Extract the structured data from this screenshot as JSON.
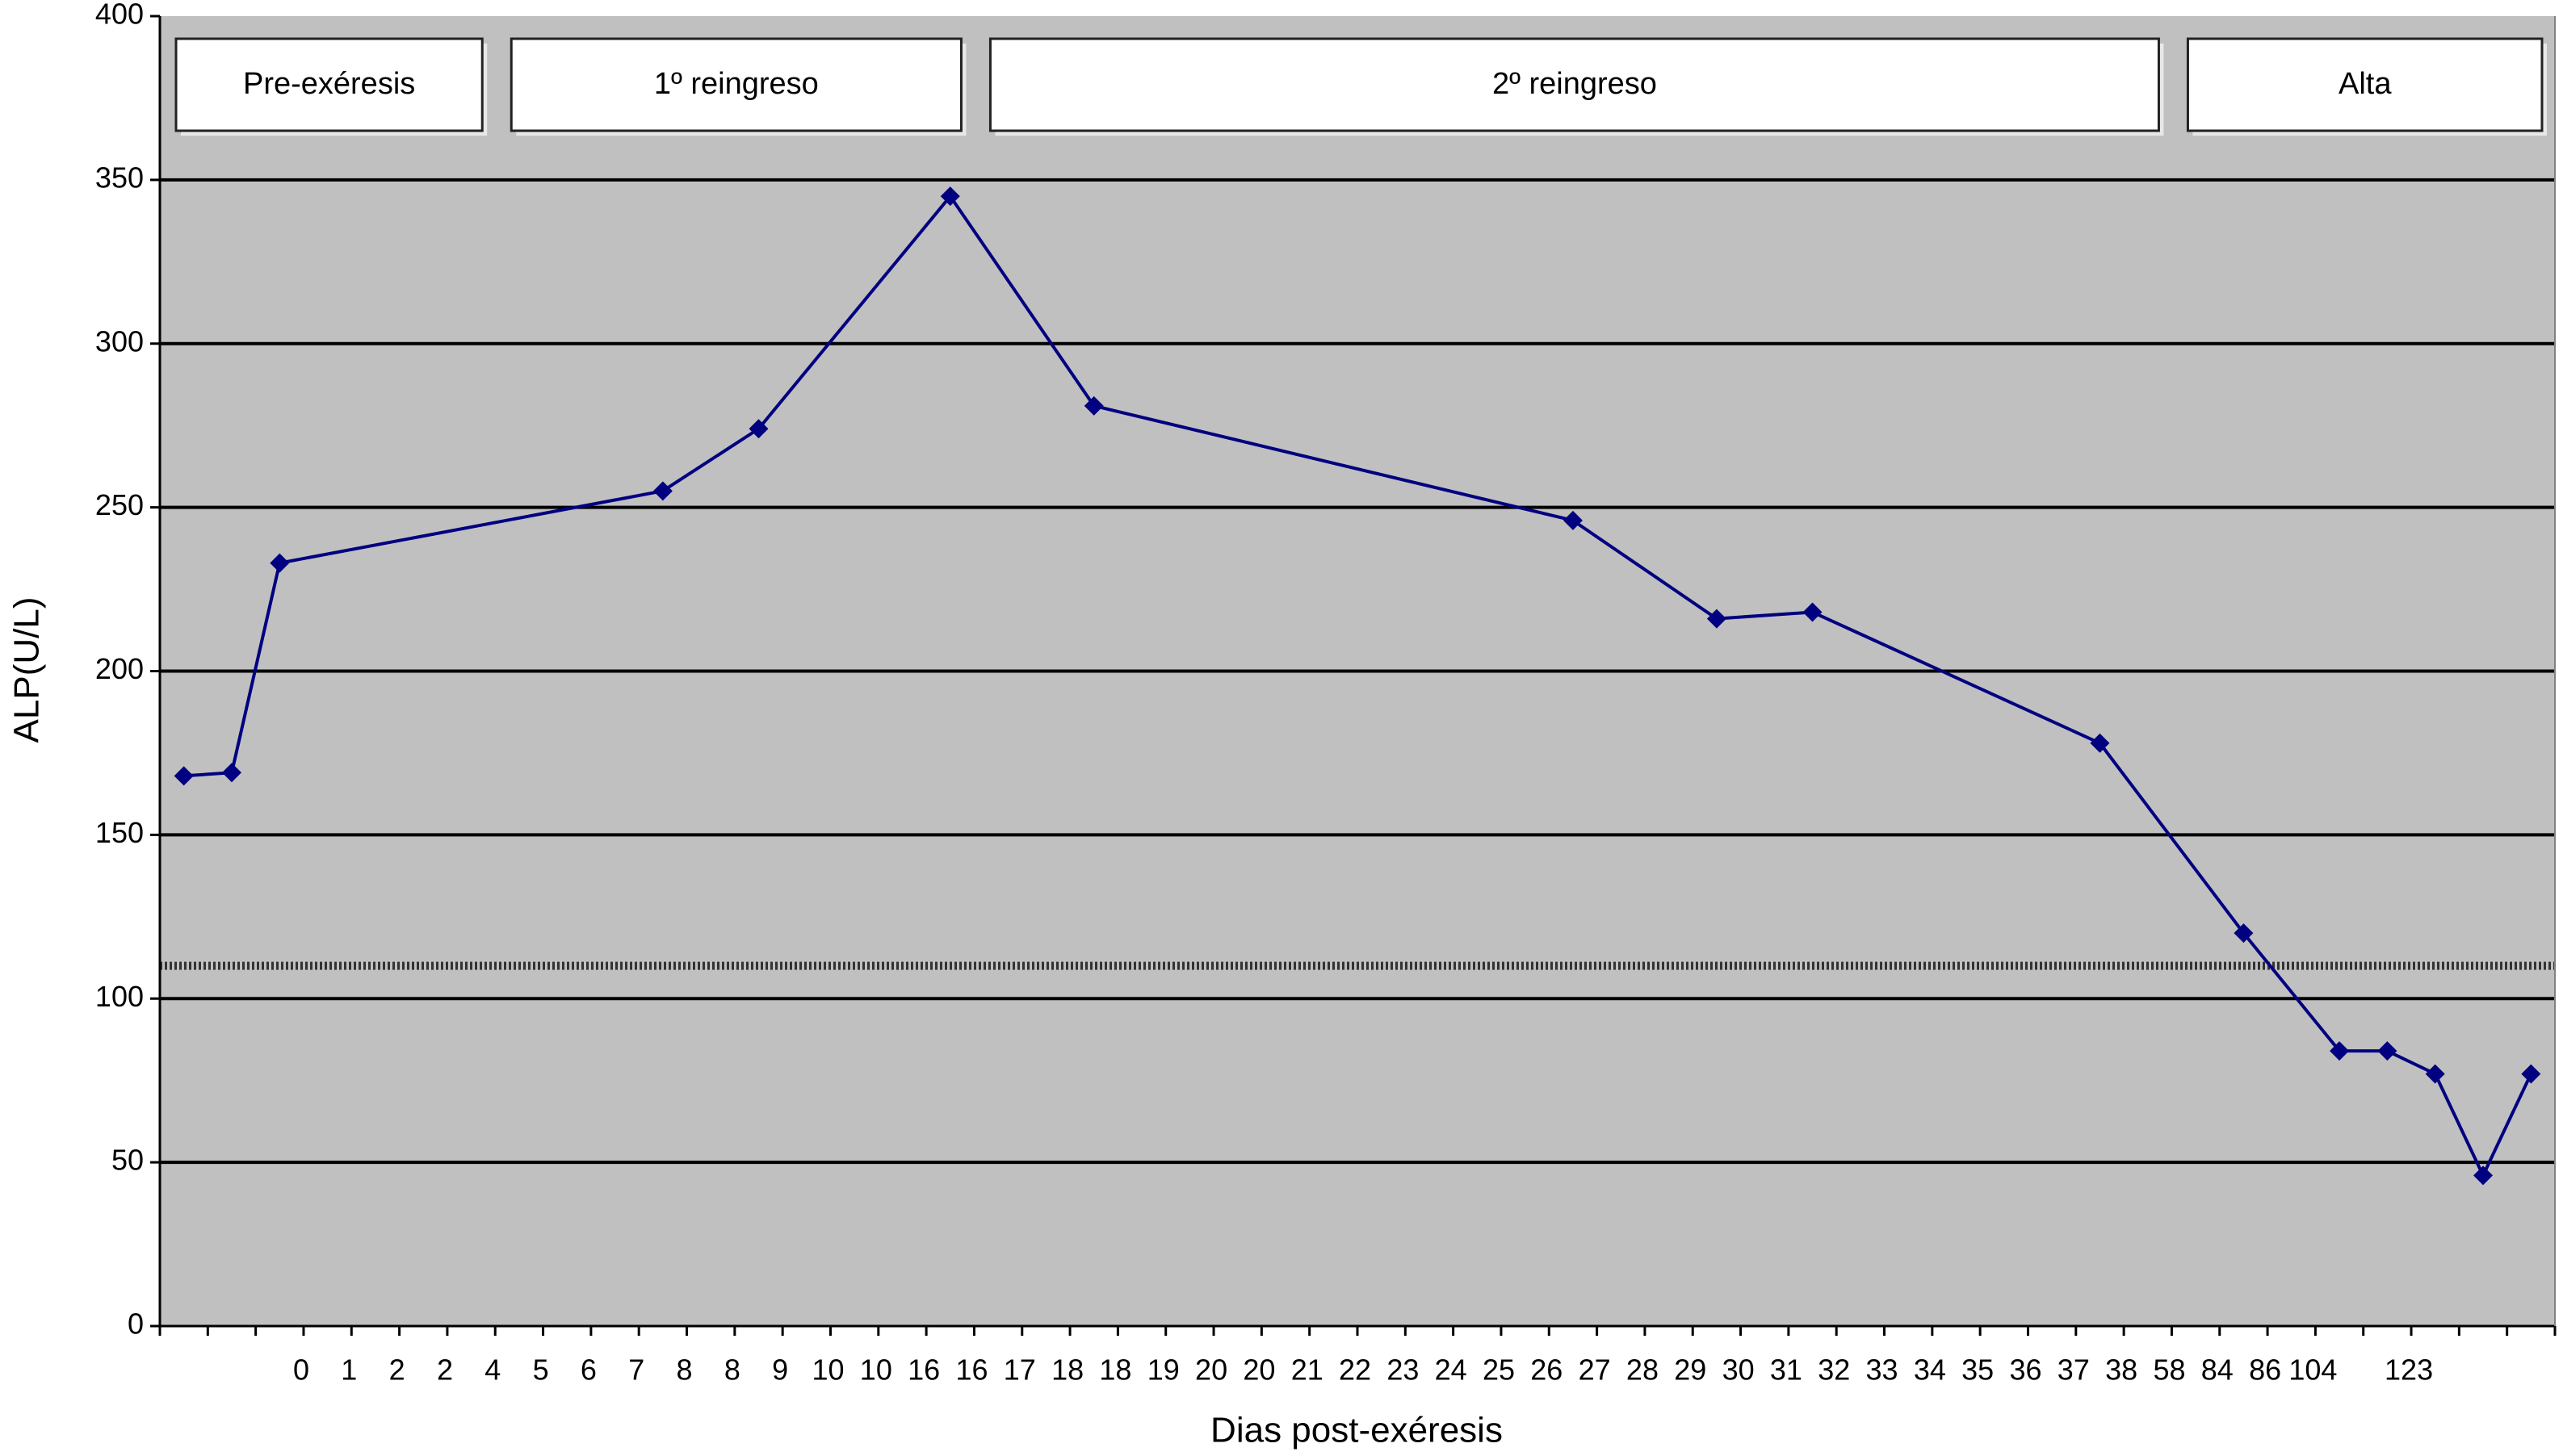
{
  "chart_data": {
    "type": "line",
    "y_label": "ALP(U/L)",
    "x_label": "Dias post-exéresis",
    "categories": [
      null,
      null,
      "0",
      "1",
      "2",
      "2",
      "4",
      "5",
      "6",
      "7",
      "8",
      "8",
      "9",
      "10",
      "10",
      "16",
      "16",
      "17",
      "18",
      "18",
      "19",
      "20",
      "20",
      "21",
      "22",
      "23",
      "24",
      "25",
      "26",
      "27",
      "28",
      "29",
      "30",
      "31",
      "32",
      "33",
      "34",
      "35",
      "36",
      "37",
      "38",
      "58",
      "84",
      "86",
      "104",
      null,
      "123",
      null,
      null,
      null
    ],
    "series": [
      {
        "color": "#000080",
        "values": [
          168,
          169,
          233,
          null,
          null,
          null,
          null,
          null,
          null,
          null,
          255,
          null,
          274,
          null,
          null,
          null,
          345,
          null,
          null,
          281,
          null,
          null,
          null,
          null,
          null,
          null,
          null,
          null,
          null,
          246,
          null,
          null,
          216,
          null,
          218,
          null,
          null,
          null,
          null,
          null,
          178,
          null,
          null,
          120,
          null,
          84,
          84,
          77,
          46,
          77
        ]
      }
    ],
    "ylim": [
      0,
      400
    ],
    "yticks": [
      0,
      50,
      100,
      150,
      200,
      250,
      300,
      350,
      400
    ],
    "grid": true,
    "reference_line": 110,
    "phases": [
      "Pre-exéresis",
      "1º reingreso",
      "2º reingreso",
      "Alta"
    ]
  }
}
